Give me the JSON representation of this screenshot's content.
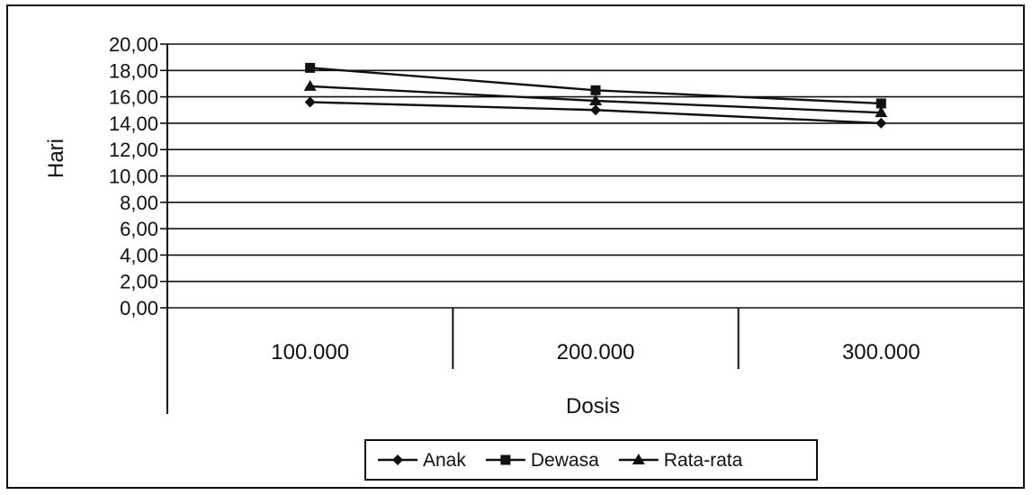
{
  "chart_data": {
    "type": "line",
    "title": "",
    "xlabel": "Dosis",
    "ylabel": "Hari",
    "categories": [
      "100.000",
      "200.000",
      "300.000"
    ],
    "ylim": [
      0,
      20
    ],
    "ytick_step": 2,
    "ytick_labels": [
      "0,00",
      "2,00",
      "4,00",
      "6,00",
      "8,00",
      "10,00",
      "12,00",
      "14,00",
      "16,00",
      "18,00",
      "20,00"
    ],
    "grid": true,
    "legend_position": "bottom",
    "series": [
      {
        "name": "Anak",
        "marker": "diamond",
        "values": [
          15.6,
          15.0,
          14.0
        ]
      },
      {
        "name": "Dewasa",
        "marker": "square",
        "values": [
          18.2,
          16.5,
          15.5
        ]
      },
      {
        "name": "Rata-rata",
        "marker": "triangle",
        "values": [
          16.8,
          15.7,
          14.8
        ]
      }
    ]
  }
}
